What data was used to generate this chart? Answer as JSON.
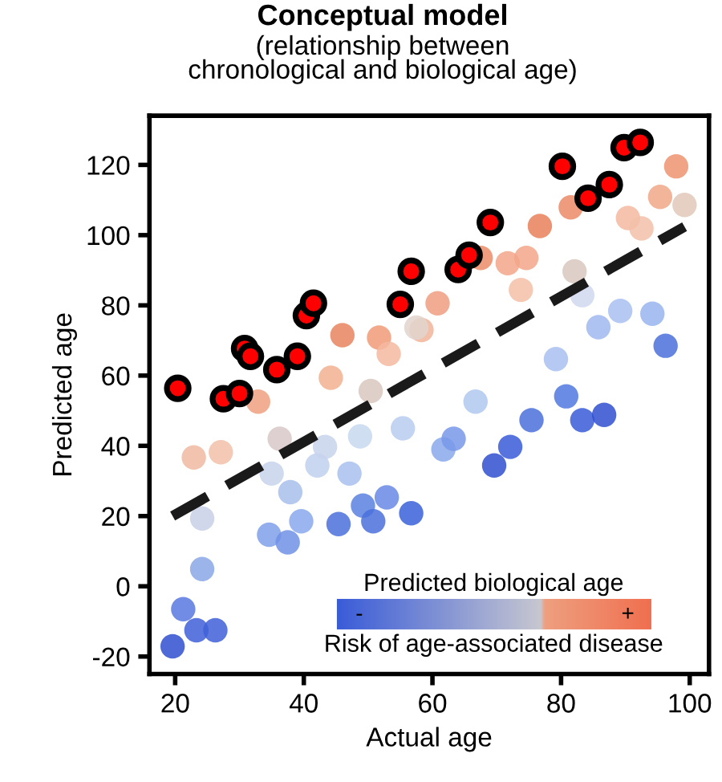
{
  "chart_data": {
    "type": "scatter",
    "title": "Conceptual model",
    "subtitle": "(relationship between\nchronological and biological age)",
    "xlabel": "Actual age",
    "ylabel": "Predicted age",
    "xlim": [
      16,
      103
    ],
    "ylim": [
      -25,
      134
    ],
    "xticks": [
      20,
      40,
      60,
      80,
      100
    ],
    "yticks": [
      -20,
      0,
      20,
      40,
      60,
      80,
      100,
      120
    ],
    "grid": false,
    "legend": false,
    "marker": "circle",
    "clabel": "Predicted biological age",
    "annotations": [
      "Risk of age-associated disease",
      "-",
      "+"
    ],
    "series": [
      {
        "x": [
          32.9,
          44.2,
          46,
          51.7,
          53.2,
          50.4,
          58.3,
          60.8,
          67.5,
          71.7,
          74.6,
          73.75,
          76.7,
          81.5,
          82.1,
          90.4,
          92.5,
          95.4,
          97.9,
          99.2,
          22.9,
          27.1,
          24.2,
          24.2,
          21.25,
          23.3,
          26.25,
          19.6,
          36.25,
          35,
          37.9,
          34.6,
          37.5,
          39.6,
          42.1,
          43.3,
          47.1,
          48.75,
          45.4,
          49.2,
          50.8,
          52.9,
          56.7,
          66.7,
          55.4,
          61.7,
          63.3,
          75.4,
          80.8,
          83.3,
          86.7,
          72.1,
          69.6,
          79.2,
          85.8,
          89.2,
          94.2,
          96.25,
          83.3,
          57.5
        ],
        "values": [
          52.6,
          59.4,
          71.5,
          70.8,
          66.2,
          55.6,
          73,
          80.6,
          93.5,
          92,
          93.5,
          84.4,
          102.6,
          107.9,
          89.7,
          104.9,
          101.9,
          110.9,
          119.6,
          108.6,
          36.7,
          38.2,
          19.3,
          4.9,
          -6.5,
          -12.5,
          -12.5,
          -17.1,
          42,
          32.1,
          26.8,
          14.7,
          12.5,
          18.5,
          34.4,
          39.7,
          32.1,
          42.7,
          17.7,
          23,
          18.5,
          25.3,
          20.8,
          52.6,
          45,
          39,
          42,
          47.3,
          54.1,
          47.3,
          48.8,
          39.7,
          34.4,
          64.7,
          73.8,
          78.4,
          77.6,
          68.5,
          82.9,
          73.7
        ],
        "colors": [
          "#f0a080",
          "#f2b090",
          "#e8855f",
          "#f09a78",
          "#f5b8a0",
          "#d8c8c0",
          "#f2b49a",
          "#ef9e80",
          "#ec8c68",
          "#f2a688",
          "#f2a688",
          "#f5c0a8",
          "#e8805a",
          "#ec8a66",
          "#d8c8c0",
          "#f5b8a0",
          "#f2c0a8",
          "#f0a888",
          "#ee9470",
          "#e0c8b8",
          "#f0b8a0",
          "#f2c0a8",
          "#c8d0e8",
          "#8aa8e8",
          "#5878e0",
          "#4060d8",
          "#4060d8",
          "#3050d0",
          "#d8c8c8",
          "#c8d4ec",
          "#a8c0ec",
          "#80a0ea",
          "#7090e6",
          "#88a8ec",
          "#c0d0ee",
          "#c8d4ec",
          "#a8c0ee",
          "#c8d8f0",
          "#4a70dc",
          "#5a80e0",
          "#4a70dc",
          "#6888e4",
          "#3a60d8",
          "#b0c8f0",
          "#b8ccf0",
          "#8aa8ec",
          "#7898e8",
          "#4a70dc",
          "#5078e0",
          "#3a5cd8",
          "#3050d0",
          "#3a5cd8",
          "#3050d0",
          "#a8c0f0",
          "#a0b8f0",
          "#a8c0f0",
          "#98b4ee",
          "#4a70dc",
          "#d0d8ee",
          "#e0d4cc"
        ]
      },
      {
        "color": "#ff0000",
        "x": [
          20.4,
          27.5,
          30,
          30.8,
          31.7,
          35.8,
          39,
          40.4,
          41.5,
          55,
          56.7,
          64,
          65.7,
          69,
          80.2,
          84.2,
          87.5,
          89.8,
          92.3
        ],
        "values": [
          56.4,
          53.4,
          54.9,
          67.7,
          65.5,
          61.7,
          65.5,
          77.1,
          80.6,
          80.3,
          89.7,
          90.2,
          94.3,
          103.6,
          119.6,
          110.5,
          114.4,
          124.9,
          126.4
        ]
      },
      {
        "type": "line",
        "color": "#1a1a1a",
        "line_style": "dashed",
        "marker": "none",
        "x": [
          19.6,
          99.2
        ],
        "values": [
          20,
          102.4
        ]
      }
    ]
  }
}
